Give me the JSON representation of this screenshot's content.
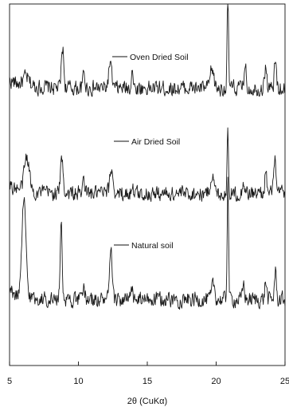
{
  "chart_data": {
    "type": "line",
    "title": "",
    "xlabel": "2θ (CuKα)",
    "ylabel": "",
    "xlim": [
      5,
      25
    ],
    "x_ticks": [
      5,
      10,
      15,
      20,
      25
    ],
    "x_tick_labels": [
      "5",
      "10",
      "15",
      "20",
      "25"
    ],
    "y_ticks_visible": false,
    "grid": false,
    "legend": "inline labels",
    "stroke_color": "#1a1a1a",
    "series": [
      {
        "name": "Oven Dried Soil",
        "baseline": 0.1,
        "peaks": [
          [
            6.2,
            0.05,
            0.3
          ],
          [
            8.85,
            0.26,
            0.12
          ],
          [
            10.4,
            0.1,
            0.1
          ],
          [
            12.3,
            0.16,
            0.15
          ],
          [
            13.9,
            0.14,
            0.08
          ],
          [
            19.7,
            0.12,
            0.18
          ],
          [
            20.85,
            0.62,
            0.07
          ],
          [
            22.1,
            0.16,
            0.1
          ],
          [
            23.6,
            0.15,
            0.1
          ],
          [
            24.3,
            0.18,
            0.1
          ]
        ]
      },
      {
        "name": "Air Dried Soil",
        "baseline": 0.1,
        "peaks": [
          [
            6.25,
            0.22,
            0.25
          ],
          [
            8.8,
            0.22,
            0.14
          ],
          [
            10.4,
            0.1,
            0.1
          ],
          [
            12.4,
            0.16,
            0.16
          ],
          [
            13.9,
            0.07,
            0.08
          ],
          [
            19.7,
            0.12,
            0.18
          ],
          [
            20.85,
            0.42,
            0.07
          ],
          [
            22.0,
            0.09,
            0.1
          ],
          [
            23.6,
            0.15,
            0.1
          ],
          [
            24.25,
            0.24,
            0.1
          ]
        ]
      },
      {
        "name": "Natural soil",
        "baseline": 0.1,
        "peaks": [
          [
            6.05,
            0.62,
            0.2
          ],
          [
            8.75,
            0.52,
            0.1
          ],
          [
            10.4,
            0.08,
            0.1
          ],
          [
            12.35,
            0.32,
            0.12
          ],
          [
            13.9,
            0.07,
            0.08
          ],
          [
            19.8,
            0.1,
            0.15
          ],
          [
            20.85,
            0.8,
            0.07
          ],
          [
            22.0,
            0.1,
            0.1
          ],
          [
            23.6,
            0.12,
            0.1
          ],
          [
            24.3,
            0.18,
            0.1
          ]
        ]
      }
    ]
  }
}
